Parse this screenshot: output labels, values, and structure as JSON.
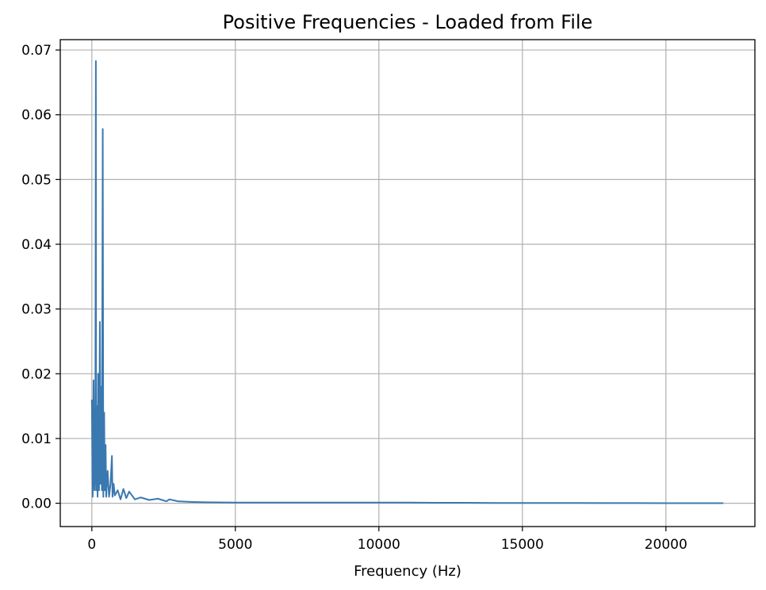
{
  "chart_data": {
    "type": "line",
    "title": "Positive Frequencies - Loaded from File",
    "xlabel": "Frequency (Hz)",
    "ylabel": "",
    "xlim": [
      -1100,
      23100
    ],
    "ylim": [
      -0.0036,
      0.0716
    ],
    "xticks": [
      0,
      5000,
      10000,
      15000,
      20000
    ],
    "xtick_labels": [
      "0",
      "5000",
      "10000",
      "15000",
      "20000"
    ],
    "yticks": [
      0.0,
      0.01,
      0.02,
      0.03,
      0.04,
      0.05,
      0.06,
      0.07
    ],
    "ytick_labels": [
      "0.00",
      "0.01",
      "0.02",
      "0.03",
      "0.04",
      "0.05",
      "0.06",
      "0.07"
    ],
    "grid": true,
    "series": [
      {
        "color": "#3a78b0",
        "x": [
          0,
          30,
          60,
          90,
          100,
          120,
          140,
          150,
          170,
          200,
          220,
          250,
          280,
          300,
          330,
          350,
          380,
          400,
          430,
          450,
          480,
          500,
          550,
          600,
          650,
          700,
          720,
          760,
          800,
          900,
          1000,
          1100,
          1200,
          1300,
          1500,
          1700,
          2000,
          2300,
          2600,
          2700,
          3000,
          3500,
          4000,
          5000,
          6000,
          7000,
          8000,
          9000,
          10000,
          11000,
          12000,
          13000,
          14000,
          15000,
          16000,
          17000,
          18000,
          19000,
          20000,
          21000,
          22000
        ],
        "y": [
          0.016,
          0.001,
          0.019,
          0.002,
          0.012,
          0.003,
          0.0683,
          0.002,
          0.015,
          0.001,
          0.02,
          0.002,
          0.028,
          0.003,
          0.018,
          0.002,
          0.0578,
          0.001,
          0.014,
          0.002,
          0.009,
          0.001,
          0.005,
          0.001,
          0.003,
          0.0073,
          0.001,
          0.003,
          0.0012,
          0.002,
          0.0006,
          0.0022,
          0.0008,
          0.0018,
          0.0006,
          0.0009,
          0.0005,
          0.0007,
          0.0003,
          0.0006,
          0.0003,
          0.0002,
          0.00015,
          0.0001,
          0.0001,
          0.0001,
          0.0001,
          0.0001,
          0.0001,
          0.0001,
          8e-05,
          8e-05,
          5e-05,
          5e-05,
          4e-05,
          4e-05,
          3e-05,
          3e-05,
          2e-05,
          2e-05,
          1e-05
        ]
      }
    ]
  }
}
